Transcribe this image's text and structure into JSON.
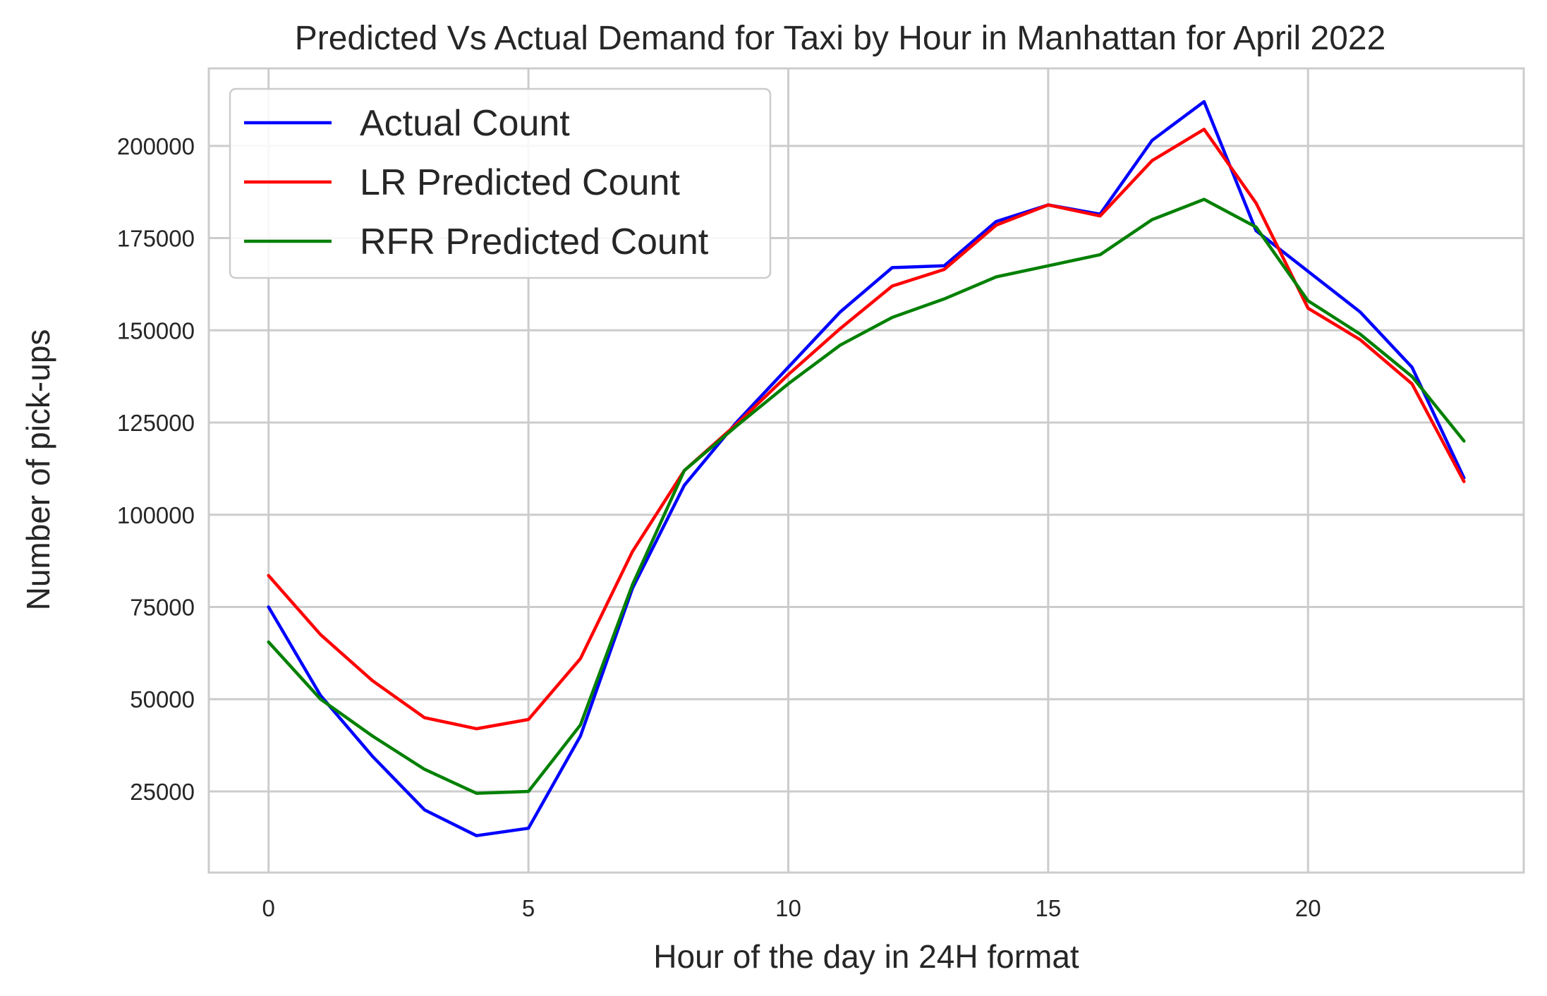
{
  "chart_data": {
    "type": "line",
    "title": "Predicted Vs Actual Demand for Taxi by Hour in Manhattan for April 2022",
    "xlabel": "Hour of the day in 24H format",
    "ylabel": "Number of pick-ups",
    "xlim": [
      -1.15,
      24.15
    ],
    "ylim": [
      3000,
      221000
    ],
    "xticks": [
      0,
      5,
      10,
      15,
      20
    ],
    "yticks": [
      25000,
      50000,
      75000,
      100000,
      125000,
      150000,
      175000,
      200000
    ],
    "grid": true,
    "legend_position": "upper left",
    "x": [
      0,
      1,
      2,
      3,
      4,
      5,
      6,
      7,
      8,
      9,
      10,
      11,
      12,
      13,
      14,
      15,
      16,
      17,
      18,
      19,
      20,
      21,
      22,
      23
    ],
    "series": [
      {
        "name": "Actual Count",
        "color": "#0000ff",
        "values": [
          75000,
          51000,
          34500,
          20000,
          13000,
          15000,
          40000,
          80000,
          108000,
          125000,
          140000,
          155000,
          167000,
          167500,
          179500,
          184000,
          181500,
          201500,
          212000,
          177000,
          166000,
          155000,
          140000,
          110000
        ]
      },
      {
        "name": "LR Predicted Count",
        "color": "#ff0000",
        "values": [
          83500,
          67500,
          55000,
          45000,
          42000,
          44500,
          61000,
          90000,
          112000,
          124500,
          138000,
          150500,
          162000,
          166500,
          178500,
          184000,
          181000,
          196000,
          204500,
          184500,
          156000,
          147500,
          135500,
          109000
        ]
      },
      {
        "name": "RFR Predicted Count",
        "color": "#008000",
        "values": [
          65500,
          50000,
          40000,
          31000,
          24500,
          25000,
          43000,
          81000,
          112000,
          124000,
          135500,
          146000,
          153500,
          158500,
          164500,
          167500,
          170500,
          180000,
          185500,
          178000,
          158000,
          149000,
          137500,
          120000
        ]
      }
    ]
  }
}
